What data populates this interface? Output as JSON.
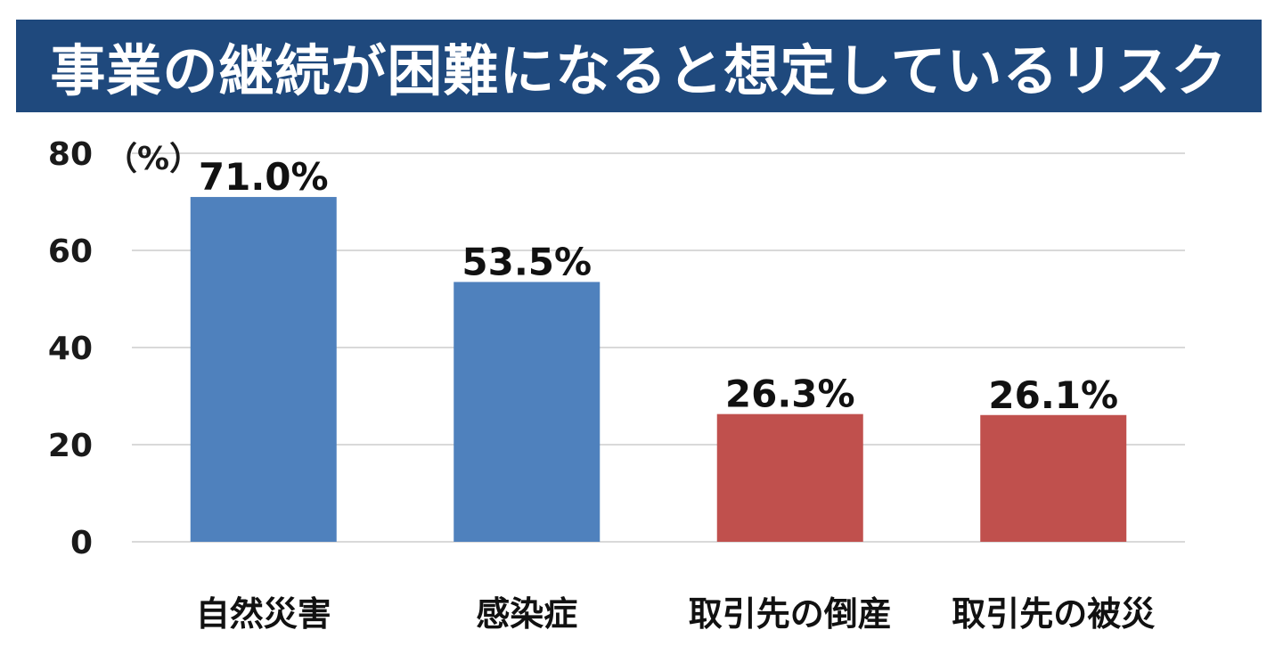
{
  "chart_data": {
    "type": "bar",
    "title": "事業の継続が困難になると想定しているリスク",
    "unit": "（%）",
    "categories": [
      "自然災害",
      "感染症",
      "取引先の倒産",
      "取引先の被災"
    ],
    "values": [
      71.0,
      53.5,
      26.3,
      26.1
    ],
    "data_labels": [
      "71.0%",
      "53.5%",
      "26.3%",
      "26.1%"
    ],
    "bar_colors": [
      "#4f81bd",
      "#4f81bd",
      "#c0504d",
      "#c0504d"
    ],
    "yticks": [
      0,
      20,
      40,
      60,
      80
    ],
    "ylim": [
      0,
      80
    ],
    "grid": true,
    "legend": "none",
    "xlabel": "",
    "ylabel": ""
  },
  "colors": {
    "title_bg": "#1f497d",
    "title_text": "#ffffff",
    "grid": "#d9d9d9"
  }
}
